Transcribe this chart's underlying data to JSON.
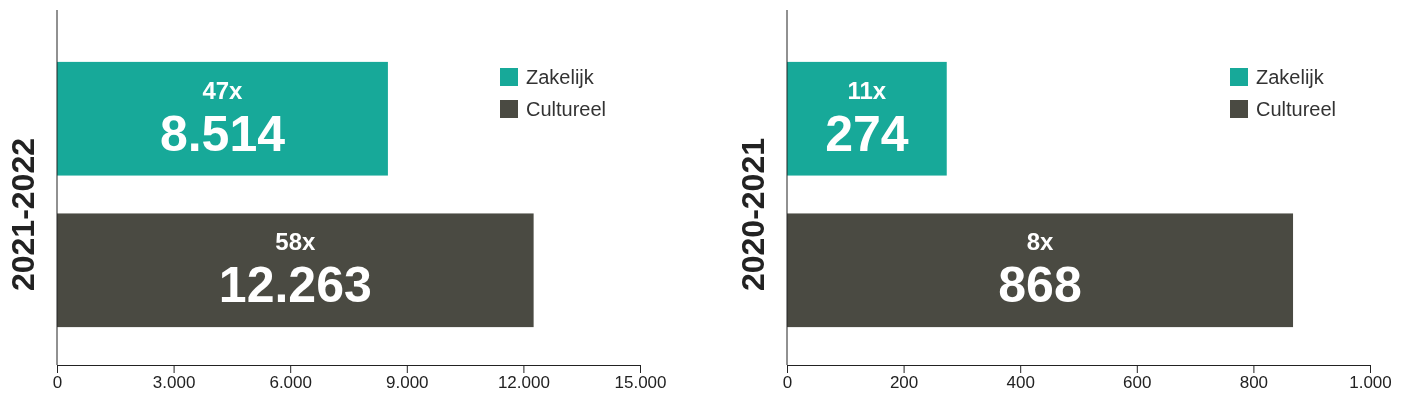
{
  "chart_data": [
    {
      "type": "bar",
      "orientation": "horizontal",
      "ylabel": "2021-2022",
      "categories": [
        null,
        null
      ],
      "series": [
        {
          "name": "Zakelijk",
          "color": "#17a999",
          "values": [
            8514,
            null
          ],
          "value_labels": [
            "8.514",
            null
          ]
        },
        {
          "name": "Cultureel",
          "color": "#4a4a42",
          "values": [
            null,
            12263
          ],
          "value_labels": [
            null,
            "12.263"
          ]
        }
      ],
      "annotations": [
        "47x",
        "58x"
      ],
      "xlim": [
        0,
        15000
      ],
      "xticks": [
        {
          "value": 0,
          "label": "0"
        },
        {
          "value": 3000,
          "label": "3.000"
        },
        {
          "value": 6000,
          "label": "6.000"
        },
        {
          "value": 9000,
          "label": "9.000"
        },
        {
          "value": 12000,
          "label": "12.000"
        },
        {
          "value": 15000,
          "label": "15.000"
        }
      ],
      "legend": "top right",
      "grid": false
    },
    {
      "type": "bar",
      "orientation": "horizontal",
      "ylabel": "2020-2021",
      "categories": [
        null,
        null
      ],
      "series": [
        {
          "name": "Zakelijk",
          "color": "#17a999",
          "values": [
            274,
            null
          ],
          "value_labels": [
            "274",
            null
          ]
        },
        {
          "name": "Cultureel",
          "color": "#4a4a42",
          "values": [
            null,
            868
          ],
          "value_labels": [
            null,
            "868"
          ]
        }
      ],
      "annotations": [
        "11x",
        "8x"
      ],
      "xlim": [
        0,
        1000
      ],
      "xticks": [
        0,
        200,
        400,
        600,
        800,
        {
          "value": 1000,
          "label": "1.000"
        }
      ],
      "legend": "top right",
      "grid": false
    }
  ]
}
